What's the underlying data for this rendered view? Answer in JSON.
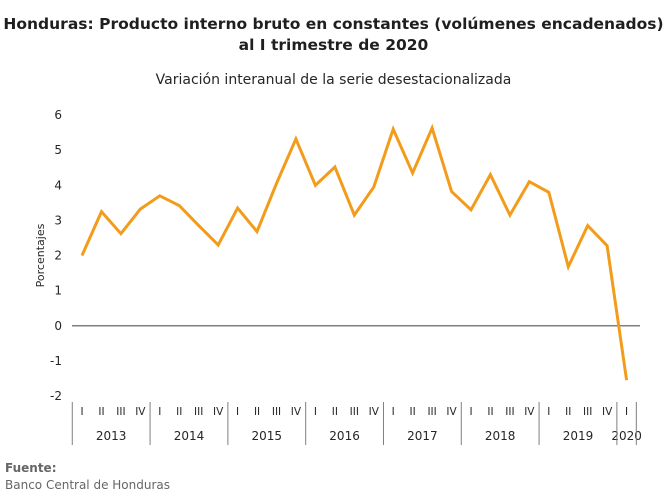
{
  "title_line1": "Honduras: Producto interno bruto en constantes (volúmenes encadenados)",
  "title_line2": "al I trimestre de 2020",
  "subtitle": "Variación interanual de la serie desestacionalizada",
  "source_label": "Fuente:",
  "source_text": "Banco Central de Honduras",
  "colors": {
    "line": "#f39c1b",
    "axis": "#7f7f7f",
    "text": "#262626"
  },
  "chart_data": {
    "type": "line",
    "ylabel": "Porcentajes",
    "ylim": [
      -2,
      6
    ],
    "yticks": [
      -2,
      -1,
      0,
      1,
      2,
      3,
      4,
      5,
      6
    ],
    "grid": false,
    "years": [
      "2013",
      "2014",
      "2015",
      "2016",
      "2017",
      "2018",
      "2019",
      "2020"
    ],
    "quarters_per_year": [
      4,
      4,
      4,
      4,
      4,
      4,
      4,
      1
    ],
    "quarter_labels": [
      "I",
      "II",
      "III",
      "IV"
    ],
    "series": [
      {
        "values": [
          2.0,
          3.25,
          2.62,
          3.32,
          3.7,
          3.42,
          2.85,
          2.3,
          3.35,
          2.68,
          4.05,
          5.32,
          4.0,
          4.52,
          3.15,
          3.95,
          5.6,
          4.35,
          5.63,
          3.82,
          3.3,
          4.3,
          3.15,
          4.1,
          3.8,
          1.68,
          2.85,
          2.28,
          -1.55
        ]
      }
    ]
  }
}
